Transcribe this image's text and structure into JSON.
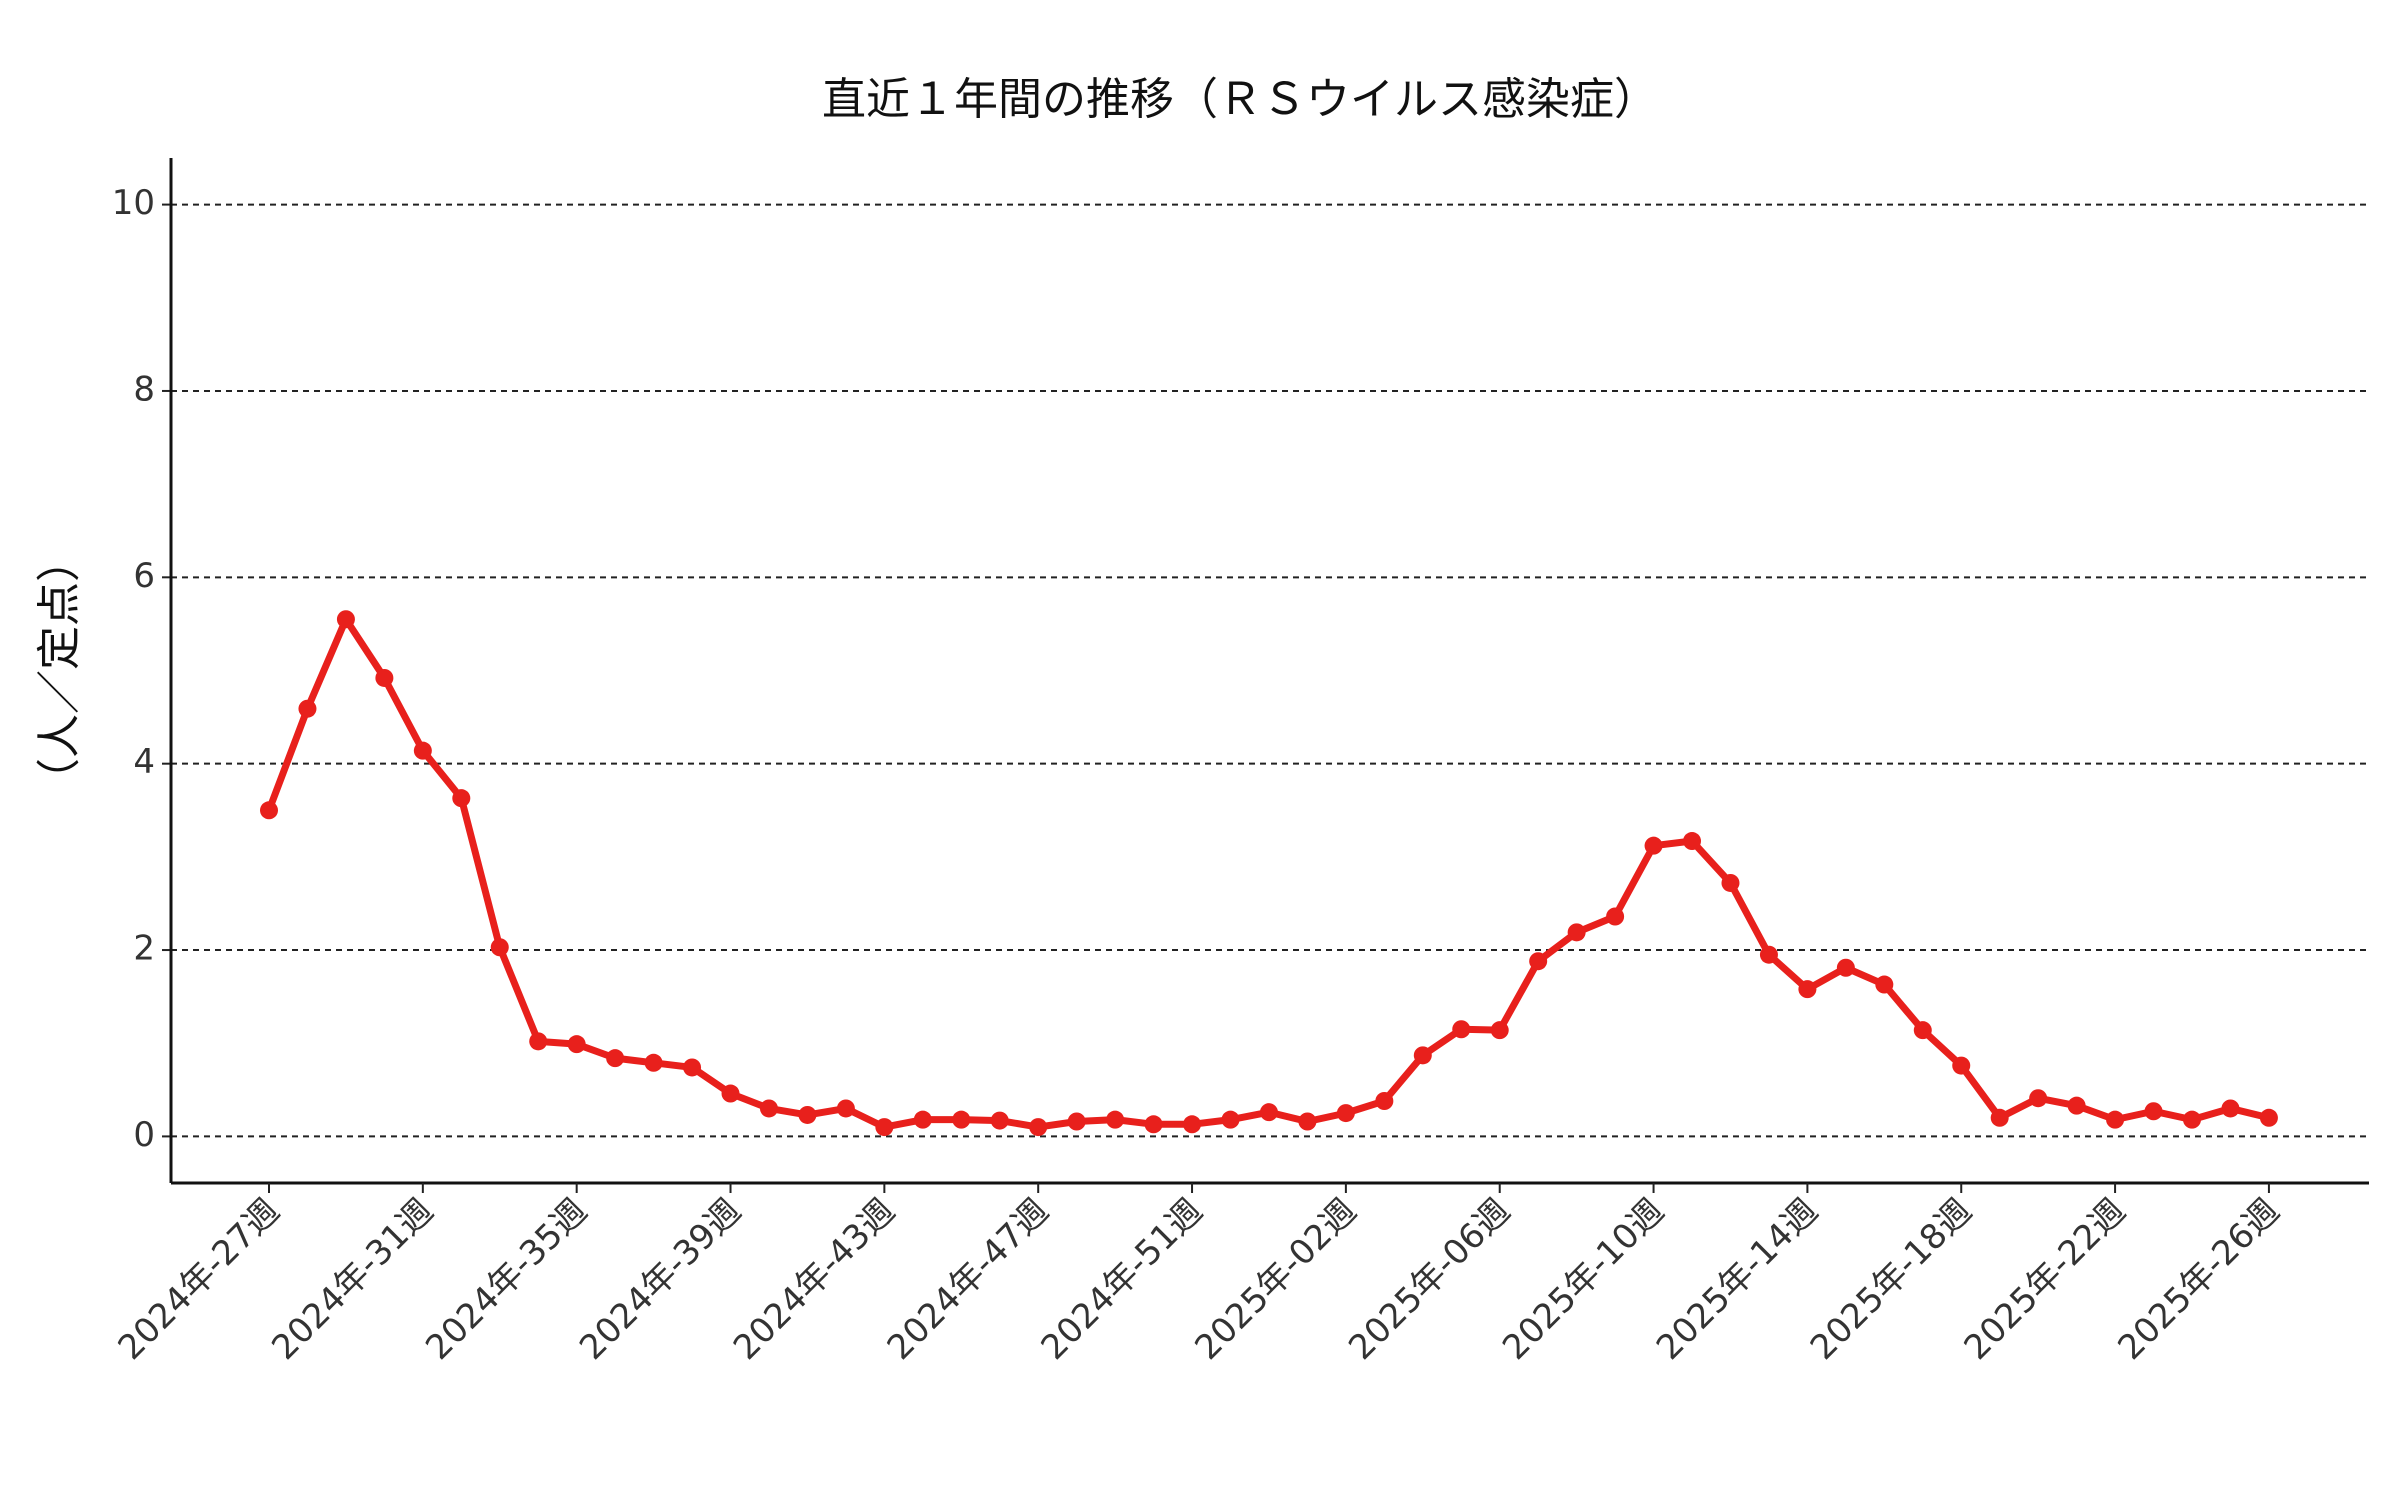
{
  "chart_data": {
    "type": "line",
    "title": "直近１年間の推移（ＲＳウイルス感染症）",
    "y_label": "（人／定点）",
    "categories": [
      "2024年-27週",
      null,
      null,
      null,
      "2024年-31週",
      null,
      null,
      null,
      "2024年-35週",
      null,
      null,
      null,
      "2024年-39週",
      null,
      null,
      null,
      "2024年-43週",
      null,
      null,
      null,
      "2024年-47週",
      null,
      null,
      null,
      "2024年-51週",
      null,
      null,
      null,
      "2025年-02週",
      null,
      null,
      null,
      "2025年-06週",
      null,
      null,
      null,
      "2025年-10週",
      null,
      null,
      null,
      "2025年-14週",
      null,
      null,
      null,
      "2025年-18週",
      null,
      null,
      null,
      "2025年-22週",
      null,
      null,
      null,
      "2025年-26週"
    ],
    "series": [
      {
        "name": "RSウイルス感染症",
        "color": "#e8201c",
        "values": [
          3.5,
          4.59,
          5.55,
          4.92,
          4.14,
          3.63,
          2.03,
          1.02,
          0.99,
          0.84,
          0.79,
          0.74,
          0.46,
          0.3,
          0.23,
          0.3,
          0.1,
          0.18,
          0.18,
          0.17,
          0.1,
          0.16,
          0.18,
          0.13,
          0.13,
          0.18,
          0.26,
          0.16,
          0.25,
          0.38,
          0.87,
          1.15,
          1.14,
          1.88,
          2.19,
          2.36,
          3.12,
          3.17,
          2.72,
          1.95,
          1.58,
          1.81,
          1.63,
          1.14,
          0.76,
          0.2,
          0.41,
          0.33,
          0.18,
          0.27,
          0.18,
          0.3,
          0.2
        ]
      }
    ],
    "ylim": [
      -0.5,
      10.5
    ],
    "yticks": [
      0,
      2,
      4,
      6,
      8,
      10
    ],
    "grid": true
  }
}
